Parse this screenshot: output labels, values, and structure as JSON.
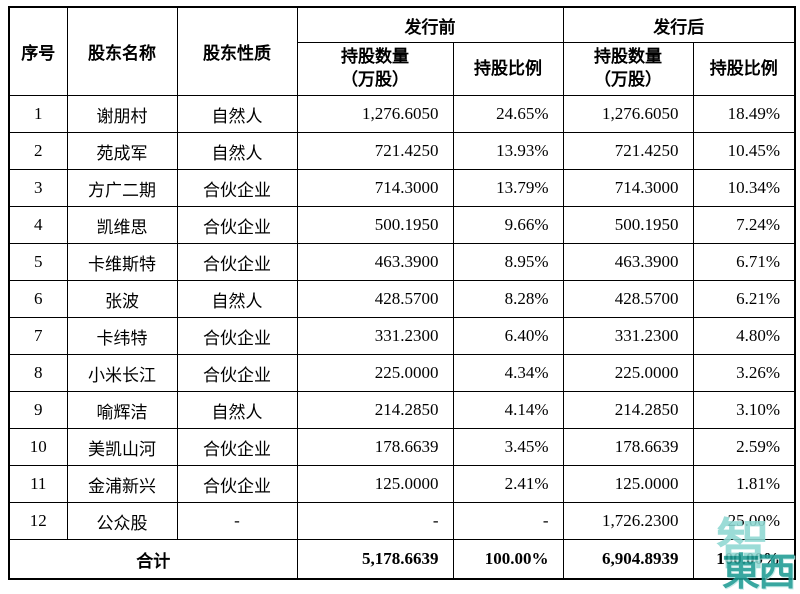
{
  "header": {
    "col_serial": "序号",
    "col_name": "股东名称",
    "col_nature": "股东性质",
    "group_before": "发行前",
    "group_after": "发行后",
    "col_shares_line1": "持股数量",
    "col_shares_line2": "（万股）",
    "col_ratio": "持股比例"
  },
  "rows": [
    {
      "no": "1",
      "name": "谢朋村",
      "nature": "自然人",
      "shares_before": "1,276.6050",
      "ratio_before": "24.65%",
      "shares_after": "1,276.6050",
      "ratio_after": "18.49%"
    },
    {
      "no": "2",
      "name": "苑成军",
      "nature": "自然人",
      "shares_before": "721.4250",
      "ratio_before": "13.93%",
      "shares_after": "721.4250",
      "ratio_after": "10.45%"
    },
    {
      "no": "3",
      "name": "方广二期",
      "nature": "合伙企业",
      "shares_before": "714.3000",
      "ratio_before": "13.79%",
      "shares_after": "714.3000",
      "ratio_after": "10.34%"
    },
    {
      "no": "4",
      "name": "凯维思",
      "nature": "合伙企业",
      "shares_before": "500.1950",
      "ratio_before": "9.66%",
      "shares_after": "500.1950",
      "ratio_after": "7.24%"
    },
    {
      "no": "5",
      "name": "卡维斯特",
      "nature": "合伙企业",
      "shares_before": "463.3900",
      "ratio_before": "8.95%",
      "shares_after": "463.3900",
      "ratio_after": "6.71%"
    },
    {
      "no": "6",
      "name": "张波",
      "nature": "自然人",
      "shares_before": "428.5700",
      "ratio_before": "8.28%",
      "shares_after": "428.5700",
      "ratio_after": "6.21%"
    },
    {
      "no": "7",
      "name": "卡纬特",
      "nature": "合伙企业",
      "shares_before": "331.2300",
      "ratio_before": "6.40%",
      "shares_after": "331.2300",
      "ratio_after": "4.80%"
    },
    {
      "no": "8",
      "name": "小米长江",
      "nature": "合伙企业",
      "shares_before": "225.0000",
      "ratio_before": "4.34%",
      "shares_after": "225.0000",
      "ratio_after": "3.26%"
    },
    {
      "no": "9",
      "name": "喻辉洁",
      "nature": "自然人",
      "shares_before": "214.2850",
      "ratio_before": "4.14%",
      "shares_after": "214.2850",
      "ratio_after": "3.10%"
    },
    {
      "no": "10",
      "name": "美凯山河",
      "nature": "合伙企业",
      "shares_before": "178.6639",
      "ratio_before": "3.45%",
      "shares_after": "178.6639",
      "ratio_after": "2.59%"
    },
    {
      "no": "11",
      "name": "金浦新兴",
      "nature": "合伙企业",
      "shares_before": "125.0000",
      "ratio_before": "2.41%",
      "shares_after": "125.0000",
      "ratio_after": "1.81%"
    },
    {
      "no": "12",
      "name": "公众股",
      "nature": "-",
      "shares_before": "-",
      "ratio_before": "-",
      "shares_after": "1,726.2300",
      "ratio_after": "25.00%"
    }
  ],
  "total": {
    "label": "合计",
    "shares_before": "5,178.6639",
    "ratio_before": "100.00%",
    "shares_after": "6,904.8939",
    "ratio_after": "100.00%"
  },
  "watermark": {
    "top": "智",
    "bottom": "東西",
    "color": "#1e9c94"
  }
}
